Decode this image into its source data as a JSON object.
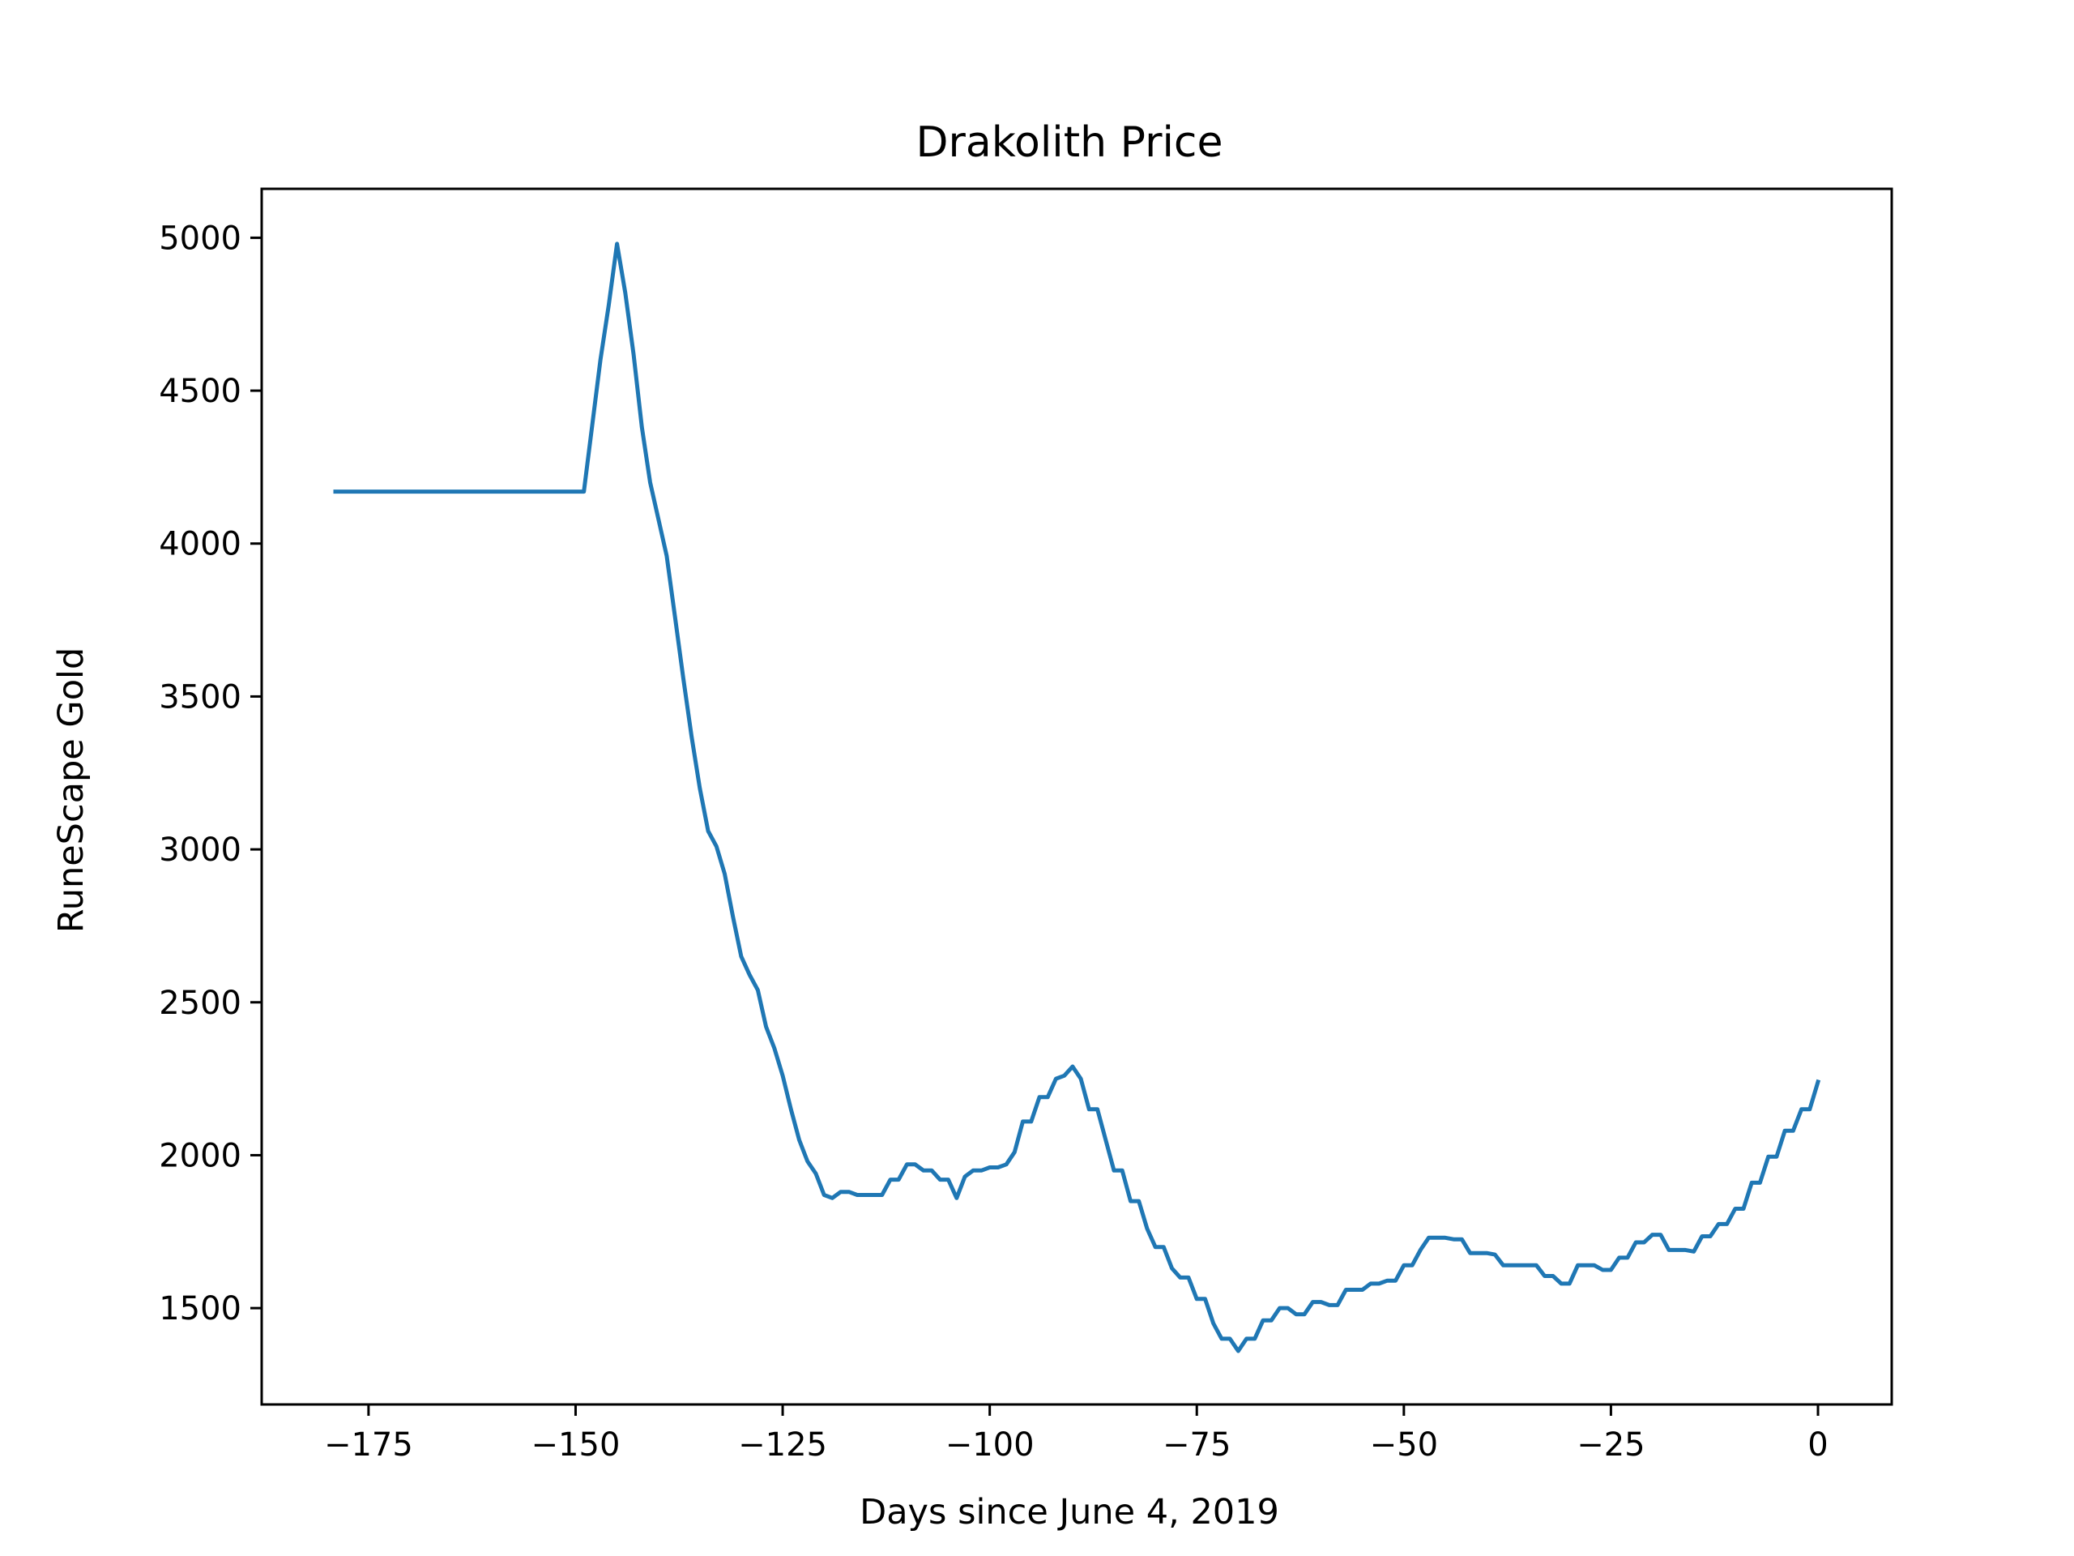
{
  "chart_data": {
    "type": "line",
    "title": "Drakolith Price",
    "xlabel": "Days since June 4, 2019",
    "ylabel": "RuneScape Gold",
    "xlim": [
      -187.9,
      8.9
    ],
    "ylim": [
      1185,
      5160
    ],
    "x_ticks": [
      -175,
      -150,
      -125,
      -100,
      -75,
      -50,
      -25,
      0
    ],
    "x_tick_labels": [
      "−175",
      "−150",
      "−125",
      "−100",
      "−75",
      "−50",
      "−25",
      "0"
    ],
    "y_ticks": [
      1500,
      2000,
      2500,
      3000,
      3500,
      4000,
      4500,
      5000
    ],
    "y_tick_labels": [
      "1500",
      "2000",
      "2500",
      "3000",
      "3500",
      "4000",
      "4500",
      "5000"
    ],
    "grid": false,
    "legend": "none",
    "line_color": "#1f77b4",
    "series": [
      {
        "points": [
          [
            -179,
            4170
          ],
          [
            -149,
            4170
          ],
          [
            -147,
            4600
          ],
          [
            -146,
            4780
          ],
          [
            -145,
            4980
          ],
          [
            -144,
            4820
          ],
          [
            -143,
            4620
          ],
          [
            -142,
            4380
          ],
          [
            -141,
            4200
          ],
          [
            -140,
            4080
          ],
          [
            -139,
            3960
          ],
          [
            -138,
            3760
          ],
          [
            -137,
            3560
          ],
          [
            -136,
            3370
          ],
          [
            -135,
            3200
          ],
          [
            -134,
            3060
          ],
          [
            -133,
            3010
          ],
          [
            -132,
            2920
          ],
          [
            -131,
            2780
          ],
          [
            -130,
            2650
          ],
          [
            -129,
            2590
          ],
          [
            -128,
            2540
          ],
          [
            -127,
            2420
          ],
          [
            -126,
            2350
          ],
          [
            -125,
            2260
          ],
          [
            -124,
            2150
          ],
          [
            -123,
            2050
          ],
          [
            -122,
            1980
          ],
          [
            -121,
            1940
          ],
          [
            -120,
            1870
          ],
          [
            -119,
            1860
          ],
          [
            -118,
            1880
          ],
          [
            -117,
            1880
          ],
          [
            -116,
            1870
          ],
          [
            -115,
            1870
          ],
          [
            -114,
            1870
          ],
          [
            -113,
            1870
          ],
          [
            -112,
            1920
          ],
          [
            -111,
            1920
          ],
          [
            -110,
            1970
          ],
          [
            -109,
            1970
          ],
          [
            -108,
            1950
          ],
          [
            -107,
            1950
          ],
          [
            -106,
            1920
          ],
          [
            -105,
            1920
          ],
          [
            -104,
            1860
          ],
          [
            -103,
            1930
          ],
          [
            -102,
            1950
          ],
          [
            -101,
            1950
          ],
          [
            -100,
            1960
          ],
          [
            -99,
            1960
          ],
          [
            -98,
            1970
          ],
          [
            -97,
            2010
          ],
          [
            -96,
            2110
          ],
          [
            -95,
            2110
          ],
          [
            -94,
            2190
          ],
          [
            -93,
            2190
          ],
          [
            -92,
            2250
          ],
          [
            -91,
            2260
          ],
          [
            -90,
            2290
          ],
          [
            -89,
            2250
          ],
          [
            -88,
            2150
          ],
          [
            -87,
            2150
          ],
          [
            -86,
            2050
          ],
          [
            -85,
            1950
          ],
          [
            -84,
            1950
          ],
          [
            -83,
            1850
          ],
          [
            -82,
            1850
          ],
          [
            -81,
            1760
          ],
          [
            -80,
            1700
          ],
          [
            -79,
            1700
          ],
          [
            -78,
            1630
          ],
          [
            -77,
            1600
          ],
          [
            -76,
            1600
          ],
          [
            -75,
            1530
          ],
          [
            -74,
            1530
          ],
          [
            -73,
            1450
          ],
          [
            -72,
            1400
          ],
          [
            -71,
            1400
          ],
          [
            -70,
            1360
          ],
          [
            -69,
            1400
          ],
          [
            -68,
            1400
          ],
          [
            -67,
            1460
          ],
          [
            -66,
            1460
          ],
          [
            -65,
            1500
          ],
          [
            -64,
            1500
          ],
          [
            -63,
            1480
          ],
          [
            -62,
            1480
          ],
          [
            -61,
            1520
          ],
          [
            -60,
            1520
          ],
          [
            -59,
            1510
          ],
          [
            -58,
            1510
          ],
          [
            -57,
            1560
          ],
          [
            -56,
            1560
          ],
          [
            -55,
            1560
          ],
          [
            -54,
            1580
          ],
          [
            -53,
            1580
          ],
          [
            -52,
            1590
          ],
          [
            -51,
            1590
          ],
          [
            -50,
            1640
          ],
          [
            -49,
            1640
          ],
          [
            -48,
            1690
          ],
          [
            -47,
            1730
          ],
          [
            -46,
            1730
          ],
          [
            -45,
            1730
          ],
          [
            -44,
            1725
          ],
          [
            -43,
            1725
          ],
          [
            -42,
            1680
          ],
          [
            -41,
            1680
          ],
          [
            -40,
            1680
          ],
          [
            -39,
            1675
          ],
          [
            -38,
            1640
          ],
          [
            -37,
            1640
          ],
          [
            -36,
            1640
          ],
          [
            -35,
            1640
          ],
          [
            -34,
            1640
          ],
          [
            -33,
            1605
          ],
          [
            -32,
            1605
          ],
          [
            -31,
            1580
          ],
          [
            -30,
            1580
          ],
          [
            -29,
            1640
          ],
          [
            -28,
            1640
          ],
          [
            -27,
            1640
          ],
          [
            -26,
            1625
          ],
          [
            -25,
            1625
          ],
          [
            -24,
            1665
          ],
          [
            -23,
            1665
          ],
          [
            -22,
            1715
          ],
          [
            -21,
            1715
          ],
          [
            -20,
            1740
          ],
          [
            -19,
            1740
          ],
          [
            -18,
            1690
          ],
          [
            -17,
            1690
          ],
          [
            -16,
            1690
          ],
          [
            -15,
            1685
          ],
          [
            -14,
            1735
          ],
          [
            -13,
            1735
          ],
          [
            -12,
            1775
          ],
          [
            -11,
            1775
          ],
          [
            -10,
            1825
          ],
          [
            -9,
            1825
          ],
          [
            -8,
            1910
          ],
          [
            -7,
            1910
          ],
          [
            -6,
            1995
          ],
          [
            -5,
            1995
          ],
          [
            -4,
            2080
          ],
          [
            -3,
            2080
          ],
          [
            -2,
            2150
          ],
          [
            -1,
            2150
          ],
          [
            0,
            2240
          ]
        ]
      }
    ]
  }
}
